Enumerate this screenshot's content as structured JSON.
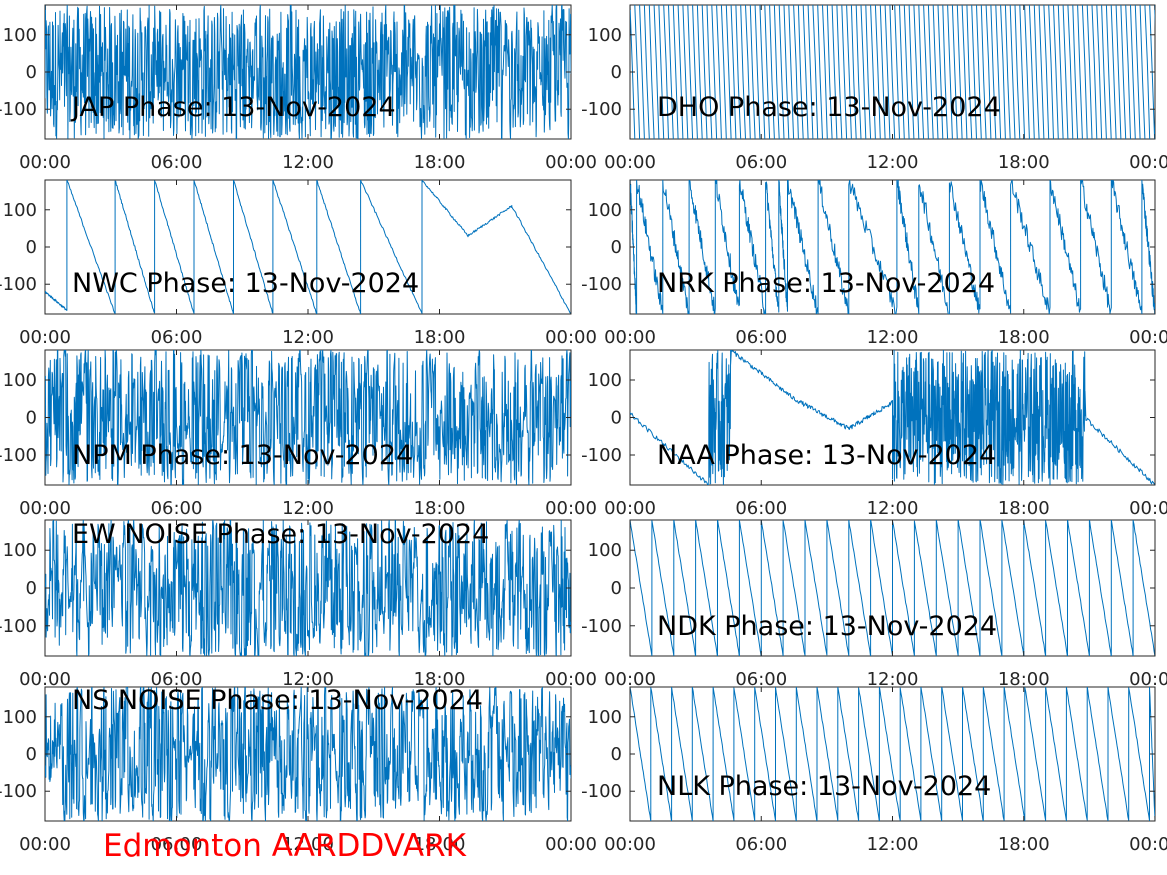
{
  "figure": {
    "title": "Edmonton AARDDVARK",
    "title_color": "#ff0000",
    "line_color": "#0072BD"
  },
  "chart_data": [
    {
      "type": "line",
      "title": "JAP Phase: 13-Nov-2024",
      "xlabel": "",
      "ylabel": "",
      "xticks": [
        "00:00",
        "06:00",
        "12:00",
        "18:00",
        "00:00"
      ],
      "yticks": [
        "100",
        "0",
        "-100"
      ],
      "ylim": [
        -180,
        180
      ],
      "xlim_hours": [
        0,
        24
      ],
      "behavior": "noise",
      "noise_intensity": [
        [
          0,
          1.0
        ],
        [
          5,
          1.0
        ],
        [
          5.2,
          0.8
        ],
        [
          24,
          0.75
        ]
      ],
      "series": [
        {
          "name": ""
        }
      ]
    },
    {
      "type": "line",
      "title": "DHO Phase: 13-Nov-2024",
      "xlabel": "",
      "ylabel": "",
      "xticks": [
        "00:00",
        "06:00",
        "12:00",
        "18:00",
        "00:00"
      ],
      "yticks": [
        "100",
        "0",
        "-100"
      ],
      "ylim": [
        -180,
        180
      ],
      "xlim_hours": [
        0,
        24
      ],
      "behavior": "fast-wrap",
      "wrap_period_hours": 0.22,
      "series": [
        {
          "name": ""
        }
      ]
    },
    {
      "type": "line",
      "title": "NWC Phase: 13-Nov-2024",
      "xlabel": "",
      "ylabel": "",
      "xticks": [
        "00:00",
        "06:00",
        "12:00",
        "18:00",
        "00:00"
      ],
      "yticks": [
        "100",
        "0",
        "-100"
      ],
      "ylim": [
        -180,
        180
      ],
      "xlim_hours": [
        0,
        24
      ],
      "behavior": "sawtooth",
      "wrap_times_hours": [
        1.0,
        3.2,
        5.0,
        6.8,
        8.6,
        10.4,
        12.4,
        14.4,
        17.2,
        24.0
      ],
      "segments": [
        {
          "t0": 0.0,
          "t1": 1.0,
          "y0": -120,
          "y1": -170
        },
        {
          "t0": 1.0,
          "t1": 3.2,
          "y0": 180,
          "y1": -180
        },
        {
          "t0": 3.2,
          "t1": 5.0,
          "y0": 180,
          "y1": -180
        },
        {
          "t0": 5.0,
          "t1": 6.8,
          "y0": 180,
          "y1": -180
        },
        {
          "t0": 6.8,
          "t1": 8.6,
          "y0": 180,
          "y1": -180
        },
        {
          "t0": 8.6,
          "t1": 10.4,
          "y0": 180,
          "y1": -180
        },
        {
          "t0": 10.4,
          "t1": 12.4,
          "y0": 180,
          "y1": -180
        },
        {
          "t0": 12.4,
          "t1": 14.4,
          "y0": 180,
          "y1": -180
        },
        {
          "t0": 14.4,
          "t1": 17.2,
          "y0": 180,
          "y1": -180
        },
        {
          "t0": 17.2,
          "t1": 19.3,
          "y0": 180,
          "y1": 30
        },
        {
          "t0": 19.3,
          "t1": 21.3,
          "y0": 30,
          "y1": 110
        },
        {
          "t0": 21.3,
          "t1": 24.0,
          "y0": 110,
          "y1": -180
        }
      ],
      "series": [
        {
          "name": ""
        }
      ]
    },
    {
      "type": "line",
      "title": "NRK Phase: 13-Nov-2024",
      "xlabel": "",
      "ylabel": "",
      "xticks": [
        "00:00",
        "06:00",
        "12:00",
        "18:00",
        "00:00"
      ],
      "yticks": [
        "100",
        "0",
        "-100"
      ],
      "ylim": [
        -180,
        180
      ],
      "xlim_hours": [
        0,
        24
      ],
      "behavior": "noisy-sawtooth",
      "wrap_times_hours": [
        0.3,
        1.5,
        2.7,
        3.9,
        5.0,
        6.2,
        6.8,
        7.2,
        8.6,
        10.0,
        12.2,
        13.2,
        14.6,
        16.0,
        17.4,
        19.2,
        20.6,
        22.0,
        23.4,
        24.0
      ],
      "series": [
        {
          "name": ""
        }
      ]
    },
    {
      "type": "line",
      "title": "NPM Phase: 13-Nov-2024",
      "xlabel": "",
      "ylabel": "",
      "xticks": [
        "00:00",
        "06:00",
        "12:00",
        "18:00",
        "00:00"
      ],
      "yticks": [
        "100",
        "0",
        "-100"
      ],
      "ylim": [
        -180,
        180
      ],
      "xlim_hours": [
        0,
        24
      ],
      "behavior": "noise",
      "noise_intensity": [
        [
          0,
          0.6
        ],
        [
          24,
          0.6
        ]
      ],
      "series": [
        {
          "name": ""
        }
      ]
    },
    {
      "type": "line",
      "title": "NAA Phase: 13-Nov-2024",
      "xlabel": "",
      "ylabel": "",
      "xticks": [
        "00:00",
        "06:00",
        "12:00",
        "18:00",
        "00:00"
      ],
      "yticks": [
        "100",
        "0",
        "-100"
      ],
      "ylim": [
        -180,
        180
      ],
      "xlim_hours": [
        0,
        24
      ],
      "behavior": "mixed",
      "segments": [
        {
          "t0": 0.0,
          "t1": 3.6,
          "y0": 10,
          "y1": -180
        },
        {
          "t0": 4.6,
          "t1": 7.5,
          "y0": 180,
          "y1": 50
        },
        {
          "t0": 7.5,
          "t1": 10.0,
          "y0": 50,
          "y1": -30
        },
        {
          "t0": 10.0,
          "t1": 12.0,
          "y0": -30,
          "y1": 40
        },
        {
          "t0": 20.8,
          "t1": 24.0,
          "y0": 0,
          "y1": -180
        }
      ],
      "noise_windows_hours": [
        [
          3.6,
          4.6
        ],
        [
          12.0,
          20.8
        ]
      ],
      "series": [
        {
          "name": ""
        }
      ]
    },
    {
      "type": "line",
      "title": "EW NOISE Phase: 13-Nov-2024",
      "xlabel": "",
      "ylabel": "",
      "xticks": [
        "00:00",
        "06:00",
        "12:00",
        "18:00",
        "00:00"
      ],
      "yticks": [
        "100",
        "0",
        "-100"
      ],
      "ylim": [
        -180,
        180
      ],
      "xlim_hours": [
        0,
        24
      ],
      "behavior": "noise",
      "noise_intensity": [
        [
          0,
          0.6
        ],
        [
          24,
          0.6
        ]
      ],
      "series": [
        {
          "name": ""
        }
      ]
    },
    {
      "type": "line",
      "title": "NDK Phase: 13-Nov-2024",
      "xlabel": "",
      "ylabel": "",
      "xticks": [
        "00:00",
        "06:00",
        "12:00",
        "18:00",
        "00:00"
      ],
      "yticks": [
        "100",
        "0",
        "-100"
      ],
      "ylim": [
        -180,
        180
      ],
      "xlim_hours": [
        0,
        24
      ],
      "behavior": "sawtooth-regular",
      "wrap_period_hours": 1.0,
      "series": [
        {
          "name": ""
        }
      ]
    },
    {
      "type": "line",
      "title": "NS NOISE Phase: 13-Nov-2024",
      "xlabel": "",
      "ylabel": "",
      "xticks": [
        "00:00",
        "06:00",
        "12:00",
        "18:00",
        "00:00"
      ],
      "yticks": [
        "100",
        "0",
        "-100"
      ],
      "ylim": [
        -180,
        180
      ],
      "xlim_hours": [
        0,
        24
      ],
      "behavior": "noise",
      "noise_intensity": [
        [
          0,
          0.55
        ],
        [
          24,
          0.55
        ]
      ],
      "series": [
        {
          "name": ""
        }
      ]
    },
    {
      "type": "line",
      "title": "NLK Phase: 13-Nov-2024",
      "xlabel": "",
      "ylabel": "",
      "xticks": [
        "00:00",
        "06:00",
        "12:00",
        "18:00",
        "00:00"
      ],
      "yticks": [
        "100",
        "0",
        "-100"
      ],
      "ylim": [
        -180,
        180
      ],
      "xlim_hours": [
        0,
        24
      ],
      "behavior": "sawtooth-regular",
      "wrap_period_hours": 0.95,
      "series": [
        {
          "name": ""
        }
      ]
    }
  ]
}
